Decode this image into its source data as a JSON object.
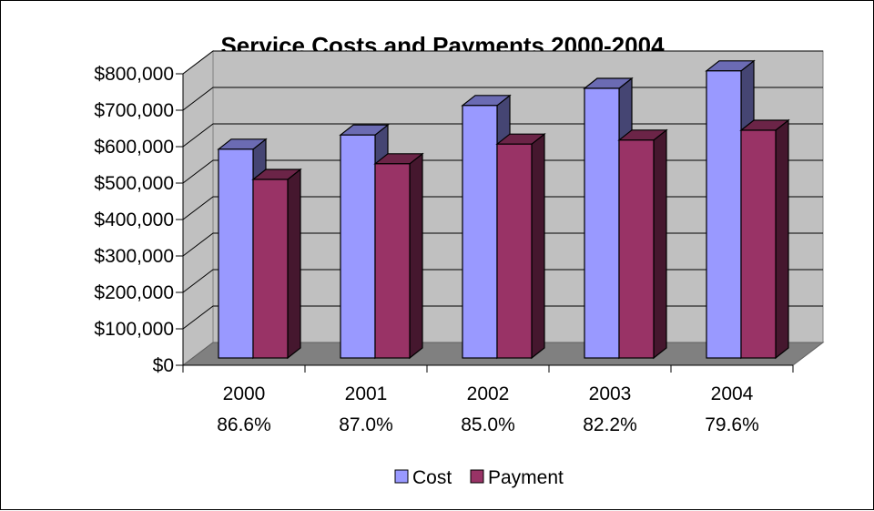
{
  "chart_data": {
    "type": "bar",
    "style": "3d-clustered-column",
    "title": "Service Costs and Payments 2000-2004",
    "categories": [
      "2000",
      "2001",
      "2002",
      "2003",
      "2004"
    ],
    "category_sublabels": [
      "86.6%",
      "87.0%",
      "85.0%",
      "82.2%",
      "79.6%"
    ],
    "series": [
      {
        "name": "Cost",
        "values": [
          573000,
          612000,
          693000,
          740000,
          788000
        ],
        "color": "#9999FF"
      },
      {
        "name": "Payment",
        "values": [
          490000,
          533000,
          587000,
          598000,
          625000
        ],
        "color": "#993366"
      }
    ],
    "yticks": [
      "$0",
      "$100,000",
      "$200,000",
      "$300,000",
      "$400,000",
      "$500,000",
      "$600,000",
      "$700,000",
      "$800,000"
    ],
    "ylim": [
      0,
      800000
    ],
    "grid": true,
    "legend_position": "bottom"
  }
}
